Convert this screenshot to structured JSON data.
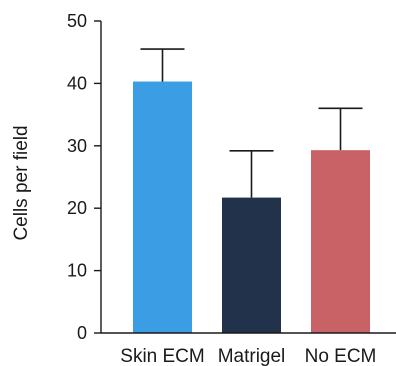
{
  "chart_data": {
    "type": "bar",
    "categories": [
      "Skin ECM",
      "Matrigel",
      "No ECM"
    ],
    "values": [
      40.3,
      21.7,
      29.3
    ],
    "errors": [
      5.2,
      7.5,
      6.7
    ],
    "colors": [
      "#3b9de3",
      "#22324a",
      "#c86266"
    ],
    "ylabel": "Cells per field",
    "xlabel": "",
    "title": "",
    "ylim": [
      0,
      50
    ],
    "yticks": [
      0,
      10,
      20,
      30,
      40,
      50
    ],
    "grid": false,
    "legend": "none"
  }
}
